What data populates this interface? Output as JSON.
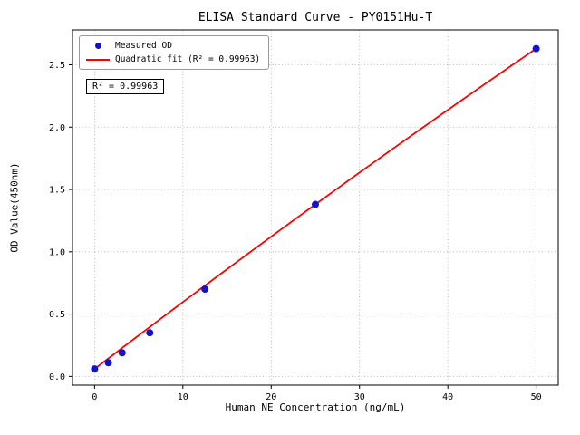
{
  "chart_data": {
    "type": "scatter",
    "title": "ELISA Standard Curve - PY0151Hu-T",
    "xlabel": "Human NE Concentration (ng/mL)",
    "ylabel": "OD Value(450nm)",
    "xlim": [
      -2.5,
      52.5
    ],
    "ylim": [
      -0.07,
      2.78
    ],
    "xticks": [
      0,
      10,
      20,
      30,
      40,
      50
    ],
    "xtick_labels": [
      "0",
      "10",
      "20",
      "30",
      "40",
      "50"
    ],
    "yticks": [
      0.0,
      0.5,
      1.0,
      1.5,
      2.0,
      2.5
    ],
    "ytick_labels": [
      "0.0",
      "0.5",
      "1.0",
      "1.5",
      "2.0",
      "2.5"
    ],
    "grid": true,
    "grid_style": "dotted",
    "series": [
      {
        "name": "Measured OD",
        "type": "scatter",
        "color": "#1212cc",
        "x": [
          0,
          1.56,
          3.12,
          6.25,
          12.5,
          25,
          50
        ],
        "y": [
          0.06,
          0.11,
          0.19,
          0.35,
          0.7,
          1.38,
          2.63
        ]
      },
      {
        "name": "Quadratic fit (R² = 0.99963)",
        "type": "line",
        "color": "#ff0000",
        "fit": {
          "a": -5.6e-05,
          "b": 0.0542,
          "c": 0.06,
          "x_start": 0,
          "x_end": 50
        }
      }
    ],
    "legend": {
      "position": "upper left",
      "entries": [
        "Measured OD",
        "Quadratic fit (R² = 0.99963)"
      ]
    },
    "annotation": {
      "text": "R² = 0.99963"
    },
    "r_squared": 0.99963
  }
}
